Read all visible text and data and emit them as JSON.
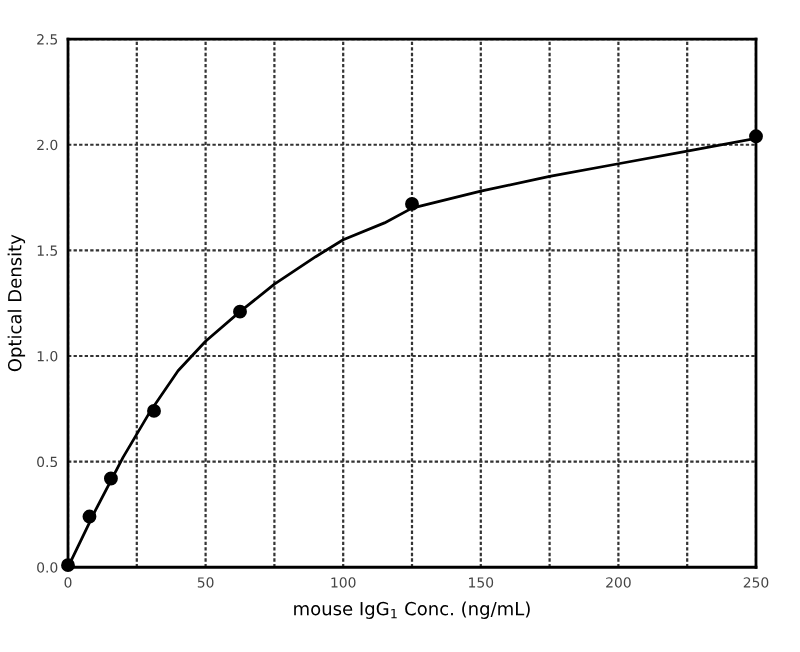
{
  "chart_data": {
    "type": "scatter",
    "xlabel": "mouse IgG$_{1}$ Conc. (ng/mL)",
    "ylabel": "Optical Density",
    "xlim": [
      0,
      250
    ],
    "ylim": [
      0,
      2.5
    ],
    "xticks": [
      0,
      {
        "value": 25,
        "label": null
      },
      50,
      {
        "value": 75,
        "label": null
      },
      100,
      {
        "value": 125,
        "label": null
      },
      150,
      {
        "value": 175,
        "label": null
      },
      200,
      {
        "value": 225,
        "label": null
      },
      250
    ],
    "yticks": [
      {
        "value": 0,
        "label": "0.0"
      },
      0.5,
      {
        "value": 1,
        "label": "1.0"
      },
      1.5,
      {
        "value": 2,
        "label": "2.0"
      },
      2.5
    ],
    "grid": true,
    "series": [
      {
        "marker": "circle",
        "color": "#000000",
        "x": [
          0,
          7.8,
          15.6,
          31.25,
          62.5,
          125,
          250
        ],
        "values": [
          0.01,
          0.24,
          0.42,
          0.74,
          1.21,
          1.72,
          2.04
        ]
      },
      {
        "type": "line",
        "marker": "none",
        "color": "#000000",
        "x": [
          0,
          10,
          20,
          30,
          40,
          50,
          62.5,
          75,
          90,
          100,
          115,
          125,
          150,
          175,
          200,
          225,
          250
        ],
        "values": [
          0,
          0.27,
          0.52,
          0.74,
          0.93,
          1.07,
          1.21,
          1.34,
          1.47,
          1.55,
          1.63,
          1.7,
          1.78,
          1.85,
          1.91,
          1.97,
          2.03
        ]
      }
    ]
  }
}
